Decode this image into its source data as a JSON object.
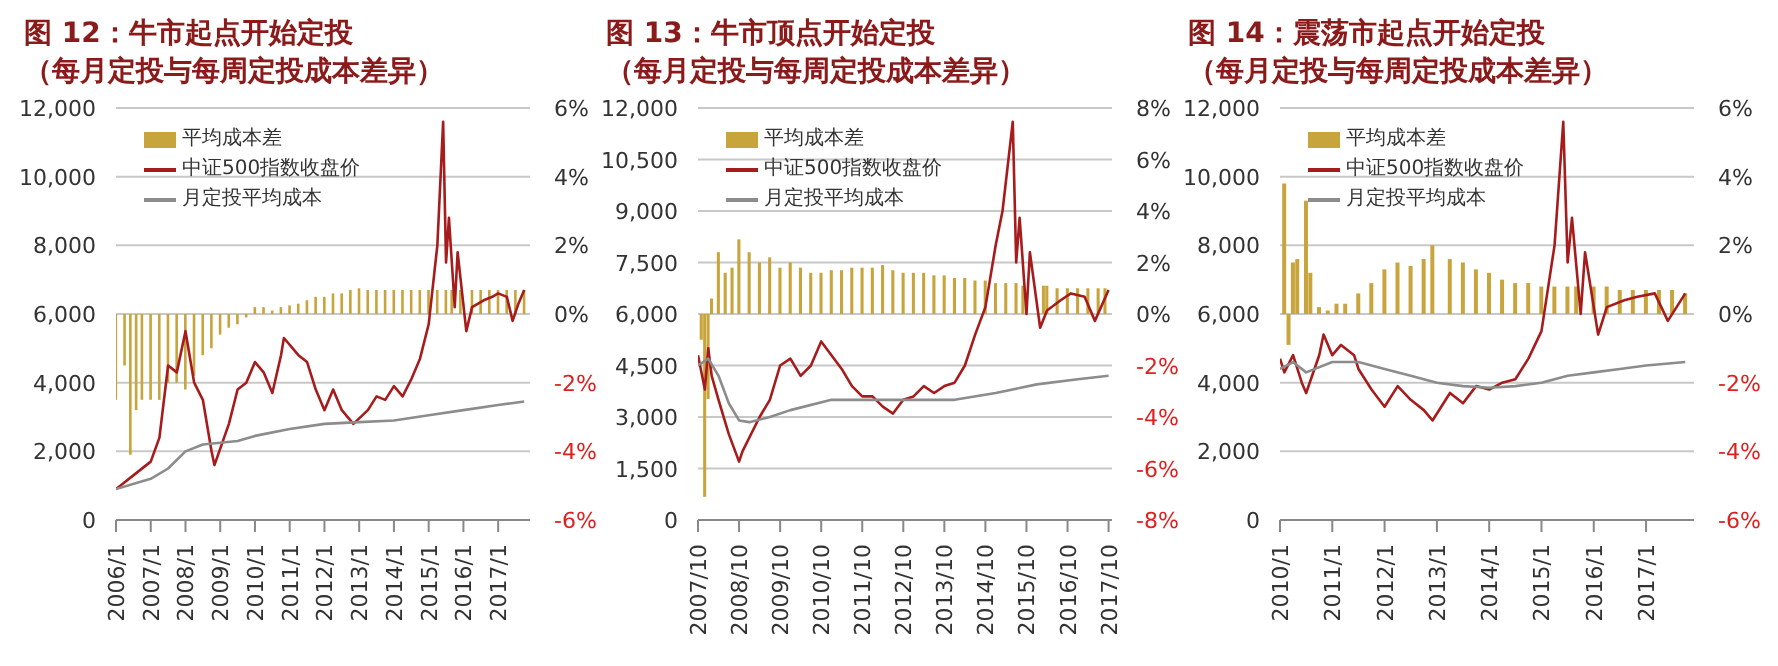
{
  "chart_data": [
    {
      "type": "bar",
      "title": "图 12：牛市起点开始定投",
      "subtitle": "（每月定投与每周定投成本差异）",
      "legend": "top left",
      "grid": "y",
      "marker": "none",
      "xlim": [
        "2006-01",
        "2017-12"
      ],
      "xticks": [
        {
          "value": "2006-01",
          "label": "2006/1"
        },
        {
          "value": "2007-01",
          "label": "2007/1"
        },
        {
          "value": "2008-01",
          "label": "2008/1"
        },
        {
          "value": "2009-01",
          "label": "2009/1"
        },
        {
          "value": "2010-01",
          "label": "2010/1"
        },
        {
          "value": "2011-01",
          "label": "2011/1"
        },
        {
          "value": "2012-01",
          "label": "2012/1"
        },
        {
          "value": "2013-01",
          "label": "2013/1"
        },
        {
          "value": "2014-01",
          "label": "2014/1"
        },
        {
          "value": "2015-01",
          "label": "2015/1"
        },
        {
          "value": "2016-01",
          "label": "2016/1"
        },
        {
          "value": "2017-01",
          "label": "2017/1"
        }
      ],
      "ylim": [
        0,
        12000
      ],
      "yticks": [
        {
          "value": 0,
          "label": "0"
        },
        {
          "value": 2000,
          "label": "2,000"
        },
        {
          "value": 4000,
          "label": "4,000"
        },
        {
          "value": 6000,
          "label": "6,000"
        },
        {
          "value": 8000,
          "label": "8,000"
        },
        {
          "value": 10000,
          "label": "10,000"
        },
        {
          "value": 12000,
          "label": "12,000"
        }
      ],
      "y2lim": [
        -6,
        6
      ],
      "y2ticks": [
        {
          "value": -6,
          "label": "-6%"
        },
        {
          "value": -4,
          "label": "-4%"
        },
        {
          "value": -2,
          "label": "-2%"
        },
        {
          "value": 0,
          "label": "0%"
        },
        {
          "value": 2,
          "label": "2%"
        },
        {
          "value": 4,
          "label": "4%"
        },
        {
          "value": 6,
          "label": "6%"
        }
      ],
      "series": [
        {
          "name": "平均成本差",
          "axis": "y2",
          "color": "#c8a43c",
          "x": [
            "2006-01",
            "2006-04",
            "2006-06",
            "2006-08",
            "2006-10",
            "2007-01",
            "2007-04",
            "2007-07",
            "2007-10",
            "2008-01",
            "2008-04",
            "2008-07",
            "2008-10",
            "2009-01",
            "2009-04",
            "2009-07",
            "2009-10",
            "2010-01",
            "2010-04",
            "2010-07",
            "2010-10",
            "2011-01",
            "2011-04",
            "2011-07",
            "2011-10",
            "2012-01",
            "2012-04",
            "2012-07",
            "2012-10",
            "2013-01",
            "2013-04",
            "2013-07",
            "2013-10",
            "2014-01",
            "2014-04",
            "2014-07",
            "2014-10",
            "2015-01",
            "2015-04",
            "2015-07",
            "2015-09",
            "2015-12",
            "2016-04",
            "2016-07",
            "2016-10",
            "2017-01",
            "2017-04",
            "2017-07",
            "2017-10"
          ],
          "values": [
            -2.5,
            -1.5,
            -4.1,
            -2.8,
            -2.5,
            -2.5,
            -2.5,
            -2.0,
            -2.0,
            -2.2,
            -1.8,
            -1.2,
            -1.0,
            -0.6,
            -0.4,
            -0.3,
            -0.1,
            0.2,
            0.2,
            0.1,
            0.2,
            0.25,
            0.3,
            0.4,
            0.5,
            0.5,
            0.6,
            0.6,
            0.7,
            0.75,
            0.7,
            0.7,
            0.7,
            0.7,
            0.7,
            0.7,
            0.7,
            0.7,
            0.7,
            0.7,
            0.7,
            0.7,
            0.7,
            0.7,
            0.7,
            0.7,
            0.7,
            0.7,
            0.7
          ]
        },
        {
          "name": "中证500指数收盘价",
          "type": "line",
          "color": "#a61c1c",
          "x": [
            "2006-01",
            "2006-07",
            "2007-01",
            "2007-04",
            "2007-07",
            "2007-10",
            "2008-01",
            "2008-04",
            "2008-07",
            "2008-10",
            "2008-11",
            "2009-04",
            "2009-07",
            "2009-10",
            "2010-01",
            "2010-04",
            "2010-07",
            "2010-10",
            "2010-11",
            "2011-04",
            "2011-07",
            "2011-10",
            "2012-01",
            "2012-04",
            "2012-07",
            "2012-11",
            "2013-04",
            "2013-07",
            "2013-10",
            "2014-01",
            "2014-04",
            "2014-07",
            "2014-10",
            "2015-01",
            "2015-04",
            "2015-06",
            "2015-07",
            "2015-08",
            "2015-10",
            "2015-11",
            "2016-02",
            "2016-04",
            "2016-08",
            "2016-11",
            "2017-01",
            "2017-04",
            "2017-06",
            "2017-08",
            "2017-10"
          ],
          "values": [
            900,
            1300,
            1700,
            2400,
            4500,
            4300,
            5500,
            4000,
            3500,
            2000,
            1600,
            2800,
            3800,
            4000,
            4600,
            4300,
            3700,
            4800,
            5300,
            4800,
            4600,
            3800,
            3200,
            3800,
            3200,
            2800,
            3200,
            3600,
            3500,
            3900,
            3600,
            4100,
            4700,
            5700,
            8000,
            11600,
            7500,
            8800,
            6200,
            7800,
            5500,
            6200,
            6400,
            6500,
            6600,
            6500,
            5800,
            6300,
            6700
          ]
        },
        {
          "name": "月定投平均成本",
          "type": "line",
          "color": "#8c8c8c",
          "x": [
            "2006-01",
            "2007-01",
            "2007-07",
            "2008-01",
            "2008-07",
            "2009-01",
            "2009-07",
            "2010-01",
            "2011-01",
            "2012-01",
            "2013-01",
            "2014-01",
            "2015-01",
            "2016-01",
            "2017-01",
            "2017-10"
          ],
          "values": [
            900,
            1200,
            1500,
            2000,
            2200,
            2250,
            2300,
            2450,
            2650,
            2800,
            2850,
            2900,
            3050,
            3200,
            3350,
            3450
          ]
        }
      ]
    },
    {
      "type": "bar",
      "title": "图 13：牛市顶点开始定投",
      "subtitle": "（每月定投与每周定投成本差异）",
      "legend": "top left",
      "grid": "y",
      "marker": "none",
      "xlim": [
        "2007-10",
        "2017-11"
      ],
      "xticks": [
        {
          "value": "2007-10",
          "label": "2007/10"
        },
        {
          "value": "2008-10",
          "label": "2008/10"
        },
        {
          "value": "2009-10",
          "label": "2009/10"
        },
        {
          "value": "2010-10",
          "label": "2010/10"
        },
        {
          "value": "2011-10",
          "label": "2011/10"
        },
        {
          "value": "2012-10",
          "label": "2012/10"
        },
        {
          "value": "2013-10",
          "label": "2013/10"
        },
        {
          "value": "2014-10",
          "label": "2014/10"
        },
        {
          "value": "2015-10",
          "label": "2015/10"
        },
        {
          "value": "2016-10",
          "label": "2016/10"
        },
        {
          "value": "2017-10",
          "label": "2017/10"
        }
      ],
      "ylim": [
        0,
        12000
      ],
      "yticks": [
        {
          "value": 0,
          "label": "0"
        },
        {
          "value": 1500,
          "label": "1,500"
        },
        {
          "value": 3000,
          "label": "3,000"
        },
        {
          "value": 4500,
          "label": "4,500"
        },
        {
          "value": 6000,
          "label": "6,000"
        },
        {
          "value": 7500,
          "label": "7,500"
        },
        {
          "value": 9000,
          "label": "9,000"
        },
        {
          "value": 10500,
          "label": "10,500"
        },
        {
          "value": 12000,
          "label": "12,000"
        }
      ],
      "y2lim": [
        -8,
        8
      ],
      "y2ticks": [
        {
          "value": -8,
          "label": "-8%"
        },
        {
          "value": -6,
          "label": "-6%"
        },
        {
          "value": -4,
          "label": "-4%"
        },
        {
          "value": -2,
          "label": "-2%"
        },
        {
          "value": 0,
          "label": "0%"
        },
        {
          "value": 2,
          "label": "2%"
        },
        {
          "value": 4,
          "label": "4%"
        },
        {
          "value": 6,
          "label": "6%"
        },
        {
          "value": 8,
          "label": "8%"
        }
      ],
      "series": [
        {
          "name": "平均成本差",
          "axis": "y2",
          "color": "#c8a43c",
          "x": [
            "2007-11",
            "2007-12",
            "2008-01",
            "2008-02",
            "2008-04",
            "2008-06",
            "2008-08",
            "2008-10",
            "2009-01",
            "2009-04",
            "2009-07",
            "2009-10",
            "2010-01",
            "2010-04",
            "2010-07",
            "2010-10",
            "2011-01",
            "2011-04",
            "2011-07",
            "2011-10",
            "2012-01",
            "2012-04",
            "2012-07",
            "2012-10",
            "2013-01",
            "2013-04",
            "2013-07",
            "2013-10",
            "2014-01",
            "2014-04",
            "2014-07",
            "2014-10",
            "2015-01",
            "2015-04",
            "2015-07",
            "2015-09",
            "2016-03",
            "2016-04",
            "2016-07",
            "2016-10",
            "2017-01",
            "2017-04",
            "2017-07",
            "2017-09"
          ],
          "values": [
            -1.0,
            -7.1,
            -3.3,
            0.6,
            2.4,
            1.6,
            1.8,
            2.9,
            2.4,
            2.0,
            2.2,
            1.8,
            2.0,
            1.8,
            1.6,
            1.6,
            1.7,
            1.7,
            1.8,
            1.8,
            1.8,
            1.9,
            1.7,
            1.6,
            1.6,
            1.6,
            1.5,
            1.5,
            1.4,
            1.4,
            1.3,
            1.3,
            1.2,
            1.2,
            1.2,
            1.1,
            1.1,
            1.1,
            1.0,
            1.0,
            1.0,
            1.0,
            1.0,
            1.0
          ]
        },
        {
          "name": "中证500指数收盘价",
          "type": "line",
          "color": "#a61c1c",
          "x": [
            "2007-10",
            "2007-12",
            "2008-01",
            "2008-02",
            "2008-04",
            "2008-07",
            "2008-10",
            "2008-11",
            "2009-04",
            "2009-07",
            "2009-10",
            "2010-01",
            "2010-04",
            "2010-07",
            "2010-10",
            "2011-01",
            "2011-04",
            "2011-07",
            "2011-10",
            "2012-01",
            "2012-04",
            "2012-07",
            "2012-10",
            "2013-01",
            "2013-04",
            "2013-07",
            "2013-10",
            "2014-01",
            "2014-04",
            "2014-07",
            "2014-10",
            "2015-01",
            "2015-03",
            "2015-06",
            "2015-07",
            "2015-08",
            "2015-10",
            "2015-11",
            "2016-02",
            "2016-04",
            "2016-08",
            "2016-11",
            "2017-03",
            "2017-06",
            "2017-10"
          ],
          "values": [
            4800,
            3800,
            5000,
            4200,
            3500,
            2500,
            1700,
            2000,
            3000,
            3500,
            4500,
            4700,
            4200,
            4500,
            5200,
            4800,
            4400,
            3900,
            3600,
            3600,
            3300,
            3100,
            3500,
            3600,
            3900,
            3700,
            3900,
            4000,
            4500,
            5400,
            6200,
            8000,
            9000,
            11600,
            7500,
            8800,
            6000,
            7800,
            5600,
            6100,
            6400,
            6600,
            6500,
            5800,
            6700
          ]
        },
        {
          "name": "月定投平均成本",
          "type": "line",
          "color": "#8c8c8c",
          "x": [
            "2007-10",
            "2008-01",
            "2008-04",
            "2008-07",
            "2008-10",
            "2009-01",
            "2009-07",
            "2010-01",
            "2011-01",
            "2012-01",
            "2013-01",
            "2014-01",
            "2015-01",
            "2016-01",
            "2017-01",
            "2017-10"
          ],
          "values": [
            4500,
            4700,
            4200,
            3400,
            2900,
            2850,
            3000,
            3200,
            3500,
            3500,
            3500,
            3500,
            3700,
            3950,
            4100,
            4200
          ]
        }
      ]
    },
    {
      "type": "bar",
      "title": "图 14：震荡市起点开始定投",
      "subtitle": "（每月定投与每周定投成本差异）",
      "legend": "top left",
      "grid": "y",
      "marker": "none",
      "xlim": [
        "2010-01",
        "2017-12"
      ],
      "xticks": [
        {
          "value": "2010-01",
          "label": "2010/1"
        },
        {
          "value": "2011-01",
          "label": "2011/1"
        },
        {
          "value": "2012-01",
          "label": "2012/1"
        },
        {
          "value": "2013-01",
          "label": "2013/1"
        },
        {
          "value": "2014-01",
          "label": "2014/1"
        },
        {
          "value": "2015-01",
          "label": "2015/1"
        },
        {
          "value": "2016-01",
          "label": "2016/1"
        },
        {
          "value": "2017-01",
          "label": "2017/1"
        }
      ],
      "ylim": [
        0,
        12000
      ],
      "yticks": [
        {
          "value": 0,
          "label": "0"
        },
        {
          "value": 2000,
          "label": "2,000"
        },
        {
          "value": 4000,
          "label": "4,000"
        },
        {
          "value": 6000,
          "label": "6,000"
        },
        {
          "value": 8000,
          "label": "8,000"
        },
        {
          "value": 10000,
          "label": "10,000"
        },
        {
          "value": 12000,
          "label": "12,000"
        }
      ],
      "y2lim": [
        -6,
        6
      ],
      "y2ticks": [
        {
          "value": -6,
          "label": "-6%"
        },
        {
          "value": -4,
          "label": "-4%"
        },
        {
          "value": -2,
          "label": "-2%"
        },
        {
          "value": 0,
          "label": "0%"
        },
        {
          "value": 2,
          "label": "2%"
        },
        {
          "value": 4,
          "label": "4%"
        },
        {
          "value": 6,
          "label": "6%"
        }
      ],
      "series": [
        {
          "name": "平均成本差",
          "axis": "y2",
          "color": "#c8a43c",
          "x": [
            "2010-02",
            "2010-03",
            "2010-04",
            "2010-05",
            "2010-07",
            "2010-08",
            "2010-10",
            "2010-12",
            "2011-02",
            "2011-04",
            "2011-07",
            "2011-10",
            "2012-01",
            "2012-04",
            "2012-07",
            "2012-10",
            "2012-12",
            "2013-04",
            "2013-07",
            "2013-10",
            "2014-01",
            "2014-04",
            "2014-07",
            "2014-10",
            "2015-01",
            "2015-04",
            "2015-07",
            "2015-09",
            "2016-01",
            "2016-04",
            "2016-07",
            "2016-10",
            "2017-01",
            "2017-04",
            "2017-07",
            "2017-10"
          ],
          "values": [
            3.8,
            -0.9,
            1.5,
            1.6,
            3.3,
            1.2,
            0.2,
            0.1,
            0.3,
            0.3,
            0.6,
            0.9,
            1.3,
            1.5,
            1.4,
            1.6,
            2.0,
            1.6,
            1.5,
            1.3,
            1.2,
            1.0,
            0.9,
            0.9,
            0.8,
            0.8,
            0.8,
            0.8,
            0.8,
            0.8,
            0.7,
            0.7,
            0.7,
            0.7,
            0.7,
            0.6
          ]
        },
        {
          "name": "中证500指数收盘价",
          "type": "line",
          "color": "#a61c1c",
          "x": [
            "2010-01",
            "2010-02",
            "2010-04",
            "2010-06",
            "2010-07",
            "2010-10",
            "2010-11",
            "2011-01",
            "2011-03",
            "2011-06",
            "2011-07",
            "2011-10",
            "2012-01",
            "2012-04",
            "2012-07",
            "2012-10",
            "2012-12",
            "2013-04",
            "2013-07",
            "2013-10",
            "2014-01",
            "2014-04",
            "2014-07",
            "2014-10",
            "2015-01",
            "2015-04",
            "2015-06",
            "2015-07",
            "2015-08",
            "2015-10",
            "2015-11",
            "2016-02",
            "2016-04",
            "2016-08",
            "2016-11",
            "2017-03",
            "2017-06",
            "2017-10"
          ],
          "values": [
            4700,
            4300,
            4800,
            4000,
            3700,
            4800,
            5400,
            4800,
            5100,
            4800,
            4400,
            3800,
            3300,
            3900,
            3500,
            3200,
            2900,
            3700,
            3400,
            3900,
            3800,
            4000,
            4100,
            4700,
            5500,
            8000,
            11600,
            7500,
            8800,
            6000,
            7800,
            5400,
            6200,
            6400,
            6500,
            6600,
            5800,
            6600
          ]
        },
        {
          "name": "月定投平均成本",
          "type": "line",
          "color": "#8c8c8c",
          "x": [
            "2010-01",
            "2010-04",
            "2010-07",
            "2011-01",
            "2011-07",
            "2012-01",
            "2012-07",
            "2013-01",
            "2013-07",
            "2014-01",
            "2014-07",
            "2015-01",
            "2015-07",
            "2016-01",
            "2016-07",
            "2017-01",
            "2017-10"
          ],
          "values": [
            4400,
            4600,
            4300,
            4600,
            4600,
            4400,
            4200,
            4000,
            3900,
            3850,
            3900,
            4000,
            4200,
            4300,
            4400,
            4500,
            4600
          ]
        }
      ]
    }
  ]
}
